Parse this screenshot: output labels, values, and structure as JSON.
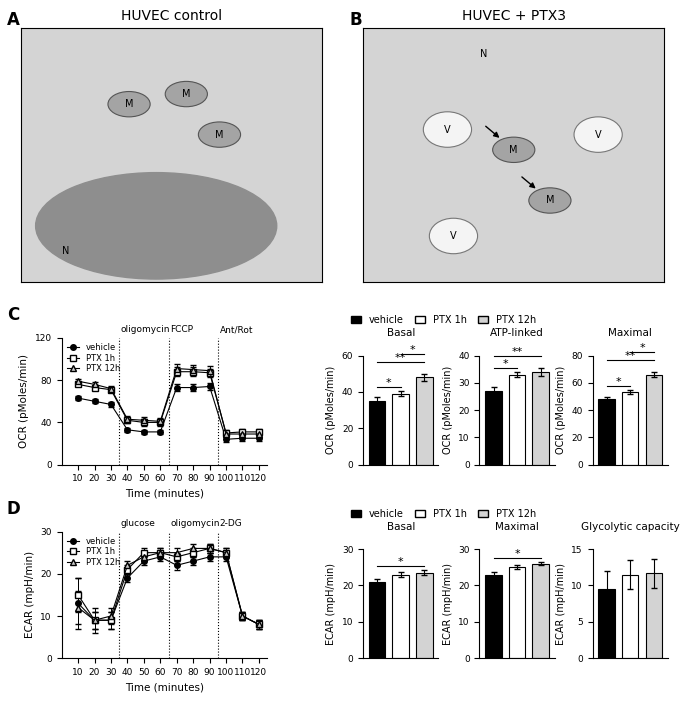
{
  "images": [
    {
      "label": "A",
      "title": "HUVEC control",
      "marks": [
        "M",
        "M",
        "M",
        "N"
      ]
    },
    {
      "label": "B",
      "title": "HUVEC + PTX3",
      "marks": [
        "N",
        "M",
        "M",
        "V",
        "V",
        "V"
      ]
    }
  ],
  "chart_data": [
    {
      "label": "C",
      "type": "line",
      "xlabel": "Time (minutes)",
      "ylabel": "OCR (pMoles/min)",
      "x": [
        10,
        20,
        30,
        40,
        50,
        60,
        70,
        80,
        90,
        100,
        110,
        120
      ],
      "xlim": [
        0,
        125
      ],
      "xticks": [
        10,
        20,
        30,
        40,
        50,
        60,
        70,
        80,
        90,
        100,
        110,
        120
      ],
      "ylim": [
        0,
        120
      ],
      "yticks": [
        0,
        40,
        80,
        120
      ],
      "legend": "upper left",
      "annotations": [
        {
          "x": 35,
          "label": "oligomycin"
        },
        {
          "x": 65,
          "label": "FCCP"
        },
        {
          "x": 95,
          "label": "Ant/Rot"
        }
      ],
      "series": [
        {
          "name": "vehicle",
          "color": "#000000",
          "marker": "o",
          "line_style": "solid",
          "values": [
            63,
            60,
            57,
            33,
            31,
            31,
            73,
            73,
            74,
            24,
            25,
            25
          ],
          "errors": [
            2,
            2,
            2,
            2,
            2,
            2,
            3,
            3,
            3,
            3,
            3,
            3
          ]
        },
        {
          "name": "PTX 1h",
          "color": "#ffffff",
          "marker": "s",
          "line_style": "solid",
          "values": [
            76,
            73,
            71,
            42,
            40,
            40,
            88,
            88,
            87,
            30,
            31,
            31
          ],
          "errors": [
            2,
            2,
            2,
            3,
            3,
            3,
            4,
            4,
            4,
            3,
            3,
            3
          ]
        },
        {
          "name": "PTX 12h",
          "color": "#c8c8c8",
          "marker": "^",
          "line_style": "solid",
          "values": [
            79,
            76,
            72,
            43,
            42,
            41,
            91,
            90,
            89,
            29,
            29,
            29
          ],
          "errors": [
            2,
            2,
            2,
            3,
            3,
            3,
            4,
            4,
            4,
            3,
            3,
            3
          ]
        }
      ]
    },
    {
      "type": "bar",
      "categories": [
        "vehicle",
        "PTX 1h",
        "PTX 12h"
      ],
      "colors": [
        "#000000",
        "#ffffff",
        "#d3d3d3"
      ],
      "tick_labels": "y",
      "legend": "upper left",
      "ylabel": "OCR (pMoles/min)",
      "panels": [
        {
          "title": "Basal",
          "values": [
            35,
            39,
            48
          ],
          "errors": [
            2,
            1.5,
            2
          ],
          "ylim": [
            0,
            60
          ],
          "yticks": [
            0,
            20,
            40,
            60
          ],
          "significance": [
            {
              "pair": [
                0,
                1
              ],
              "label": "*"
            },
            {
              "pair": [
                0,
                2
              ],
              "label": "**"
            },
            {
              "pair": [
                1,
                2
              ],
              "label": "*"
            }
          ]
        },
        {
          "title": "ATP-linked",
          "values": [
            27,
            33,
            34
          ],
          "errors": [
            1.5,
            1,
            1.5
          ],
          "ylim": [
            0,
            40
          ],
          "yticks": [
            0,
            10,
            20,
            30,
            40
          ],
          "significance": [
            {
              "pair": [
                0,
                1
              ],
              "label": "*"
            },
            {
              "pair": [
                0,
                2
              ],
              "label": "**"
            }
          ]
        },
        {
          "title": "Maximal",
          "values": [
            48,
            53,
            66
          ],
          "errors": [
            1.5,
            1.5,
            2
          ],
          "ylim": [
            0,
            80
          ],
          "yticks": [
            0,
            20,
            40,
            60,
            80
          ],
          "significance": [
            {
              "pair": [
                0,
                1
              ],
              "label": "*"
            },
            {
              "pair": [
                0,
                2
              ],
              "label": "**"
            },
            {
              "pair": [
                1,
                2
              ],
              "label": "*"
            }
          ]
        }
      ]
    },
    {
      "label": "D",
      "type": "line",
      "xlabel": "Time (minutes)",
      "ylabel": "ECAR (mpH/min)",
      "x": [
        10,
        20,
        30,
        40,
        50,
        60,
        70,
        80,
        90,
        100,
        110,
        120
      ],
      "xlim": [
        0,
        125
      ],
      "xticks": [
        10,
        20,
        30,
        40,
        50,
        60,
        70,
        80,
        90,
        100,
        110,
        120
      ],
      "ylim": [
        0,
        30
      ],
      "yticks": [
        0,
        10,
        20,
        30
      ],
      "legend": "upper left",
      "annotations": [
        {
          "x": 35,
          "label": "glucose"
        },
        {
          "x": 65,
          "label": "oligomycin"
        },
        {
          "x": 95,
          "label": "2-DG"
        }
      ],
      "series": [
        {
          "name": "vehicle",
          "color": "#000000",
          "marker": "o",
          "line_style": "solid",
          "values": [
            13,
            9,
            9,
            19,
            23,
            24,
            22,
            23,
            24,
            24,
            10,
            8
          ],
          "errors": [
            6,
            3,
            2,
            1,
            1,
            1,
            1,
            1,
            1,
            1,
            1,
            1
          ]
        },
        {
          "name": "PTX 1h",
          "color": "#ffffff",
          "marker": "s",
          "line_style": "solid",
          "values": [
            15,
            9,
            9,
            21,
            25,
            25,
            24,
            25,
            26,
            25,
            10,
            8
          ],
          "errors": [
            4,
            2,
            2,
            1,
            1,
            1,
            1,
            1,
            1,
            1,
            1,
            1
          ]
        },
        {
          "name": "PTX 12h",
          "color": "#c8c8c8",
          "marker": "^",
          "line_style": "solid",
          "values": [
            12,
            9,
            10,
            22,
            24,
            25,
            25,
            26,
            26,
            25,
            10,
            8
          ],
          "errors": [
            4,
            2,
            2,
            1,
            1,
            1,
            1,
            1,
            1,
            1,
            1,
            1
          ]
        }
      ]
    },
    {
      "type": "bar",
      "categories": [
        "vehicle",
        "PTX 1h",
        "PTX 12h"
      ],
      "colors": [
        "#000000",
        "#ffffff",
        "#d3d3d3"
      ],
      "tick_labels": "y",
      "legend": "upper left",
      "ylabel": "ECAR (mpH/min)",
      "panels": [
        {
          "title": "Basal",
          "values": [
            21,
            23,
            23.5
          ],
          "errors": [
            0.7,
            0.6,
            0.7
          ],
          "ylim": [
            0,
            30
          ],
          "yticks": [
            0,
            10,
            20,
            30
          ],
          "significance": [
            {
              "pair": [
                0,
                2
              ],
              "label": "*"
            }
          ]
        },
        {
          "title": "Maximal",
          "values": [
            23,
            25,
            26
          ],
          "errors": [
            0.7,
            0.5,
            0.4
          ],
          "ylim": [
            0,
            30
          ],
          "yticks": [
            0,
            10,
            20,
            30
          ],
          "significance": [
            {
              "pair": [
                0,
                2
              ],
              "label": "*"
            }
          ]
        },
        {
          "title": "Glycolytic capacity",
          "values": [
            9.5,
            11.5,
            11.7
          ],
          "errors": [
            2.5,
            2,
            2
          ],
          "ylim": [
            0,
            15
          ],
          "yticks": [
            0,
            5,
            10,
            15
          ],
          "significance": []
        }
      ]
    }
  ]
}
